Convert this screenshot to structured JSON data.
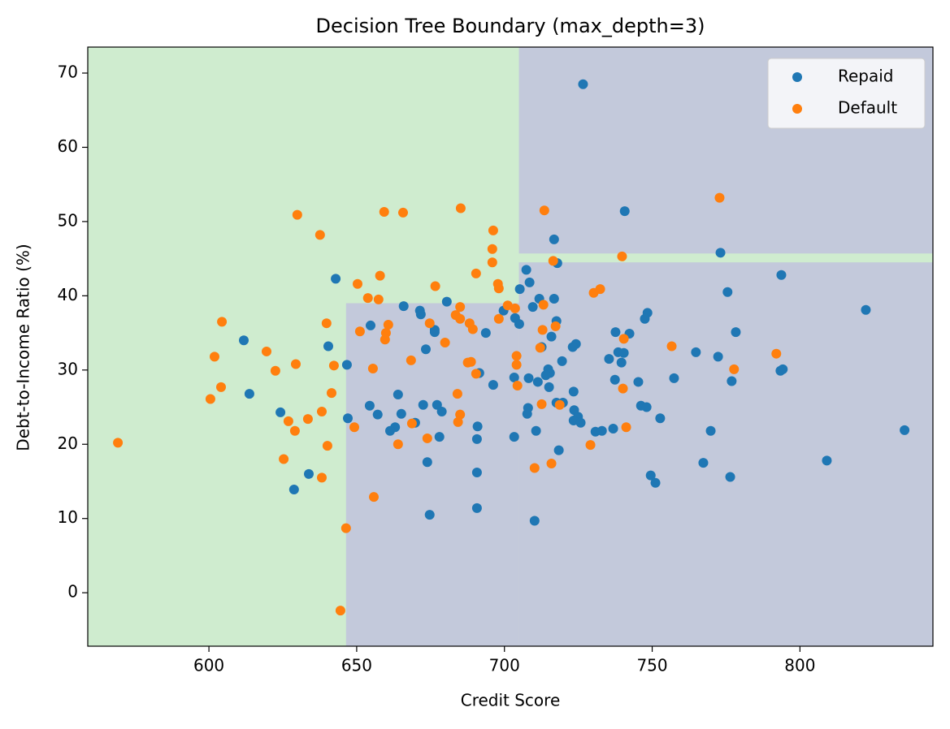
{
  "chart_data": {
    "type": "scatter",
    "title": "Decision Tree Boundary (max_depth=3)",
    "x_label": "Credit Score",
    "y_label": "Debt-to-Income Ratio (%)",
    "xlim": [
      559,
      845
    ],
    "ylim": [
      -7.2,
      73.5
    ],
    "xticks": [
      600,
      650,
      700,
      750,
      800
    ],
    "yticks": [
      0,
      10,
      20,
      30,
      40,
      50,
      60,
      70
    ],
    "background_color": "#cfeccf",
    "regions": [
      {
        "color": "#c3c9db",
        "x": [
          646.4,
          704.9
        ],
        "y": [
          -7.2,
          39.0
        ]
      },
      {
        "color": "#c3c9db",
        "x": [
          704.9,
          845
        ],
        "y": [
          -7.2,
          44.5
        ]
      },
      {
        "color": "#c3c9db",
        "x": [
          704.9,
          845
        ],
        "y": [
          45.7,
          73.5
        ]
      }
    ],
    "legend": "upper right",
    "series": [
      {
        "name": "Repaid",
        "color": "#1f77b4",
        "x": [
          726.6,
          740.7,
          716.8,
          773.1,
          717.9,
          707.4,
          642.9,
          708.5,
          793.7,
          705.2,
          775.5,
          711.8,
          716.8,
          709.6,
          665.9,
          680.5,
          822.3,
          671.4,
          671.7,
          699.7,
          703.6,
          705.0,
          717.6,
          748.4,
          747.5,
          654.7,
          676.4,
          676.4,
          693.7,
          737.6,
          742.3,
          778.3,
          611.8,
          715.9,
          640.4,
          712.6,
          724.2,
          723.1,
          673.4,
          738.5,
          740.4,
          764.8,
          772.3,
          735.4,
          719.5,
          739.6,
          646.7,
          793.4,
          794.2,
          714.8,
          691.5,
          715.4,
          714.0,
          703.3,
          708.2,
          711.3,
          715.1,
          696.2,
          757.4,
          737.4,
          745.3,
          776.9,
          613.7,
          723.4,
          664.0,
          677.2,
          672.5,
          654.4,
          717.6,
          719.8,
          746.2,
          748.1,
          708.0,
          723.6,
          678.8,
          624.2,
          707.7,
          665.1,
          657.1,
          647.0,
          724.9,
          752.7,
          723.4,
          725.8,
          669.8,
          663.0,
          690.9,
          661.3,
          710.7,
          730.8,
          733.0,
          769.8,
          835.4,
          736.8,
          678.0,
          703.3,
          690.7,
          718.4,
          673.9,
          767.3,
          809.1,
          633.8,
          690.7,
          749.5,
          776.4,
          751.1,
          628.8,
          690.7,
          674.7,
          710.2
        ],
        "values": [
          68.5,
          51.4,
          47.6,
          45.8,
          44.4,
          43.5,
          42.3,
          41.8,
          42.8,
          40.9,
          40.5,
          39.6,
          39.6,
          38.5,
          38.6,
          39.2,
          38.1,
          38.0,
          37.5,
          38.0,
          37.0,
          36.2,
          36.6,
          37.7,
          36.9,
          36.0,
          35.4,
          35.1,
          35.0,
          35.1,
          34.9,
          35.1,
          34.0,
          34.5,
          33.2,
          33.1,
          33.5,
          33.1,
          32.8,
          32.4,
          32.3,
          32.4,
          31.8,
          31.5,
          31.2,
          31.0,
          30.7,
          29.9,
          30.1,
          30.1,
          29.6,
          29.6,
          29.3,
          29.0,
          28.9,
          28.4,
          27.7,
          28.0,
          28.9,
          28.7,
          28.4,
          28.5,
          26.8,
          27.1,
          26.7,
          25.3,
          25.3,
          25.2,
          25.6,
          25.6,
          25.2,
          25.0,
          24.9,
          24.6,
          24.4,
          24.3,
          24.1,
          24.1,
          24.0,
          23.5,
          23.7,
          23.5,
          23.2,
          22.9,
          22.9,
          22.3,
          22.4,
          21.8,
          21.8,
          21.7,
          21.8,
          21.8,
          21.9,
          22.1,
          21.0,
          21.0,
          20.7,
          19.2,
          17.6,
          17.5,
          17.8,
          16.0,
          16.2,
          15.8,
          15.6,
          14.8,
          13.9,
          11.4,
          10.5,
          9.7
        ]
      },
      {
        "name": "Default",
        "color": "#ff7f0e",
        "x": [
          772.8,
          685.2,
          629.9,
          659.3,
          665.7,
          713.5,
          637.6,
          696.2,
          695.9,
          739.8,
          716.5,
          695.9,
          657.9,
          690.4,
          650.3,
          697.8,
          698.1,
          676.6,
          732.4,
          730.2,
          653.8,
          657.4,
          713.2,
          701.1,
          703.6,
          685.0,
          683.5,
          698.1,
          685.0,
          688.2,
          674.7,
          604.4,
          639.8,
          660.7,
          717.3,
          689.3,
          651.1,
          712.9,
          659.9,
          659.6,
          740.4,
          679.9,
          756.6,
          712.1,
          619.5,
          792.0,
          601.9,
          704.1,
          668.4,
          688.7,
          687.6,
          629.4,
          642.3,
          704.1,
          655.5,
          777.7,
          622.5,
          690.4,
          704.4,
          604.1,
          740.1,
          641.5,
          684.1,
          600.5,
          712.6,
          718.7,
          638.2,
          685.0,
          633.5,
          626.9,
          684.3,
          668.7,
          649.2,
          741.2,
          629.1,
          673.9,
          569.2,
          664.0,
          729.1,
          640.1,
          625.3,
          715.9,
          710.2,
          638.2,
          655.8,
          646.4,
          644.5
        ],
        "values": [
          53.2,
          51.8,
          50.9,
          51.3,
          51.2,
          51.5,
          48.2,
          48.8,
          46.3,
          45.3,
          44.7,
          44.5,
          42.7,
          43.0,
          41.6,
          41.6,
          41.0,
          41.3,
          40.9,
          40.4,
          39.7,
          39.5,
          38.8,
          38.7,
          38.3,
          38.5,
          37.4,
          36.9,
          36.9,
          36.3,
          36.3,
          36.5,
          36.3,
          36.1,
          35.9,
          35.5,
          35.2,
          35.4,
          35.0,
          34.1,
          34.2,
          33.7,
          33.2,
          33.0,
          32.5,
          32.2,
          31.8,
          31.9,
          31.3,
          31.1,
          31.0,
          30.8,
          30.6,
          30.7,
          30.2,
          30.1,
          29.9,
          29.5,
          27.9,
          27.7,
          27.5,
          26.9,
          26.8,
          26.1,
          25.4,
          25.3,
          24.4,
          24.0,
          23.4,
          23.1,
          23.0,
          22.8,
          22.3,
          22.3,
          21.8,
          20.8,
          20.2,
          20.0,
          19.9,
          19.8,
          18.0,
          17.4,
          16.8,
          15.5,
          12.9,
          8.7,
          -2.4
        ]
      }
    ]
  }
}
